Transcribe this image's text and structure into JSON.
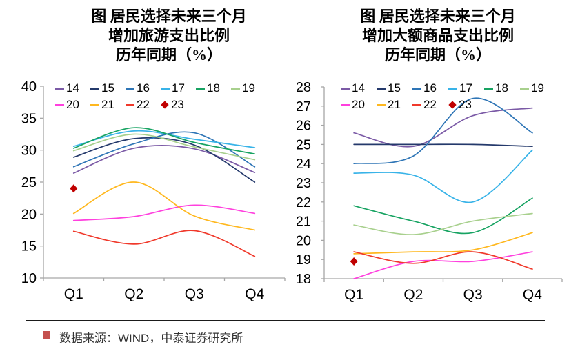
{
  "style": {
    "axis_color": "#A6A6A6",
    "tick_label_color": "#000000",
    "divider_color": "#1A1A1A",
    "source_text_color": "#333333"
  },
  "source": {
    "bullet_color": "#C4504E",
    "text": "数据来源：WIND，中泰证券研究所"
  },
  "chart_data": [
    {
      "type": "line",
      "title": "图 居民选择未来三个月增加旅游支出比例历年同期（%）",
      "title_lines": [
        "图  居民选择未来三个月",
        "增加旅游支出比例",
        "历年同期（%）"
      ],
      "categories": [
        "Q1",
        "Q2",
        "Q3",
        "Q4"
      ],
      "xlabel": "",
      "ylabel": "",
      "ylim": [
        10,
        40
      ],
      "yticks": [
        10,
        15,
        20,
        25,
        30,
        35,
        40
      ],
      "grid": false,
      "legend_position": "top-inside",
      "series": [
        {
          "name": "14",
          "color": "#7B5AA6",
          "values": [
            26.4,
            30.3,
            30.2,
            26.5
          ]
        },
        {
          "name": "15",
          "color": "#24396B",
          "values": [
            28.9,
            31.8,
            30.8,
            25.0
          ]
        },
        {
          "name": "16",
          "color": "#2E75B6",
          "values": [
            27.4,
            31.0,
            32.7,
            27.4
          ]
        },
        {
          "name": "17",
          "color": "#38B3E8",
          "values": [
            30.6,
            33.0,
            31.7,
            30.4
          ]
        },
        {
          "name": "18",
          "color": "#17A362",
          "values": [
            30.3,
            33.5,
            31.2,
            29.4
          ]
        },
        {
          "name": "19",
          "color": "#A8D08D",
          "values": [
            29.9,
            32.5,
            30.5,
            28.5
          ]
        },
        {
          "name": "20",
          "color": "#FF40DE",
          "values": [
            19.0,
            19.6,
            21.4,
            20.1
          ]
        },
        {
          "name": "21",
          "color": "#FFB81F",
          "values": [
            20.1,
            25.0,
            19.7,
            17.5
          ]
        },
        {
          "name": "22",
          "color": "#F0392B",
          "values": [
            17.3,
            15.3,
            17.4,
            13.4
          ]
        },
        {
          "name": "23",
          "color": "#C00000",
          "marker": "diamond",
          "values": [
            24.0,
            null,
            null,
            null
          ]
        }
      ]
    },
    {
      "type": "line",
      "title": "图 居民选择未来三个月增加大额商品支出比例历年同期（%）",
      "title_lines": [
        "图  居民选择未来三个月",
        "增加大额商品支出比例",
        "历年同期（%）"
      ],
      "categories": [
        "Q1",
        "Q2",
        "Q3",
        "Q4"
      ],
      "xlabel": "",
      "ylabel": "",
      "ylim": [
        18,
        28
      ],
      "yticks": [
        18,
        19,
        20,
        21,
        22,
        23,
        24,
        25,
        26,
        27,
        28
      ],
      "grid": false,
      "legend_position": "top-inside",
      "series": [
        {
          "name": "14",
          "color": "#7B5AA6",
          "values": [
            25.6,
            24.9,
            26.5,
            26.9
          ]
        },
        {
          "name": "15",
          "color": "#24396B",
          "values": [
            25.0,
            25.0,
            25.0,
            24.9
          ]
        },
        {
          "name": "16",
          "color": "#2E75B6",
          "values": [
            24.0,
            24.4,
            27.4,
            25.6
          ]
        },
        {
          "name": "17",
          "color": "#38B3E8",
          "values": [
            23.5,
            23.4,
            22.0,
            24.7
          ]
        },
        {
          "name": "18",
          "color": "#17A362",
          "values": [
            21.8,
            21.0,
            20.4,
            22.2
          ]
        },
        {
          "name": "19",
          "color": "#A8D08D",
          "values": [
            20.8,
            20.3,
            21.0,
            21.4
          ]
        },
        {
          "name": "20",
          "color": "#FF40DE",
          "values": [
            18.0,
            18.9,
            18.9,
            19.4
          ]
        },
        {
          "name": "21",
          "color": "#FFB81F",
          "values": [
            19.3,
            19.4,
            19.5,
            20.4
          ]
        },
        {
          "name": "22",
          "color": "#F0392B",
          "values": [
            19.4,
            18.8,
            19.4,
            18.5
          ]
        },
        {
          "name": "23",
          "color": "#C00000",
          "marker": "diamond",
          "values": [
            18.9,
            null,
            null,
            null
          ]
        }
      ]
    }
  ]
}
